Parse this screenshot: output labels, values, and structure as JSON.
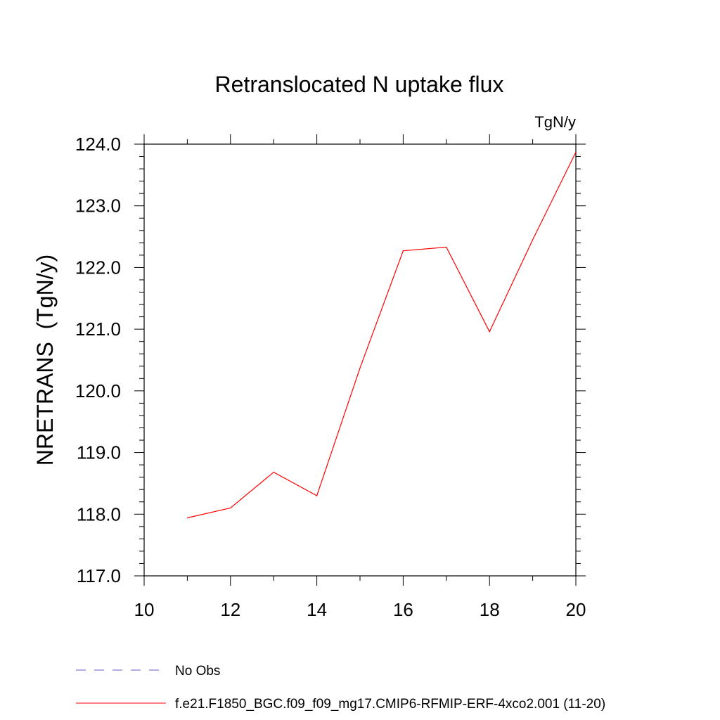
{
  "chart_data": {
    "type": "line",
    "title": "Retranslocated N uptake flux",
    "units": "TgN/y",
    "ylabel": "NRETRANS  (TgN/y)",
    "xlabel": "",
    "xlim": [
      10,
      20
    ],
    "ylim": [
      117.0,
      124.0
    ],
    "x_ticks": [
      "10",
      "12",
      "14",
      "16",
      "18",
      "20"
    ],
    "y_ticks": [
      "117.0",
      "118.0",
      "119.0",
      "120.0",
      "121.0",
      "122.0",
      "123.0",
      "124.0"
    ],
    "grid": false,
    "legend_position": "bottom-left",
    "series": [
      {
        "name": "f.e21.F1850_BGC.f09_f09_mg17.CMIP6-RFMIP-ERF-4xco2.001 (11-20)",
        "color": "#ff0000",
        "dash": "solid",
        "x": [
          11,
          12,
          13,
          14,
          15,
          16,
          17,
          18,
          19,
          20
        ],
        "y": [
          117.94,
          118.1,
          118.68,
          118.3,
          120.37,
          122.27,
          122.33,
          120.96,
          122.45,
          123.87
        ]
      }
    ],
    "legend": [
      {
        "label": "No Obs",
        "color": "#6a5acd",
        "dash": "dashed"
      },
      {
        "label": "f.e21.F1850_BGC.f09_f09_mg17.CMIP6-RFMIP-ERF-4xco2.001 (11-20)",
        "color": "#ff0000",
        "dash": "solid"
      }
    ]
  }
}
